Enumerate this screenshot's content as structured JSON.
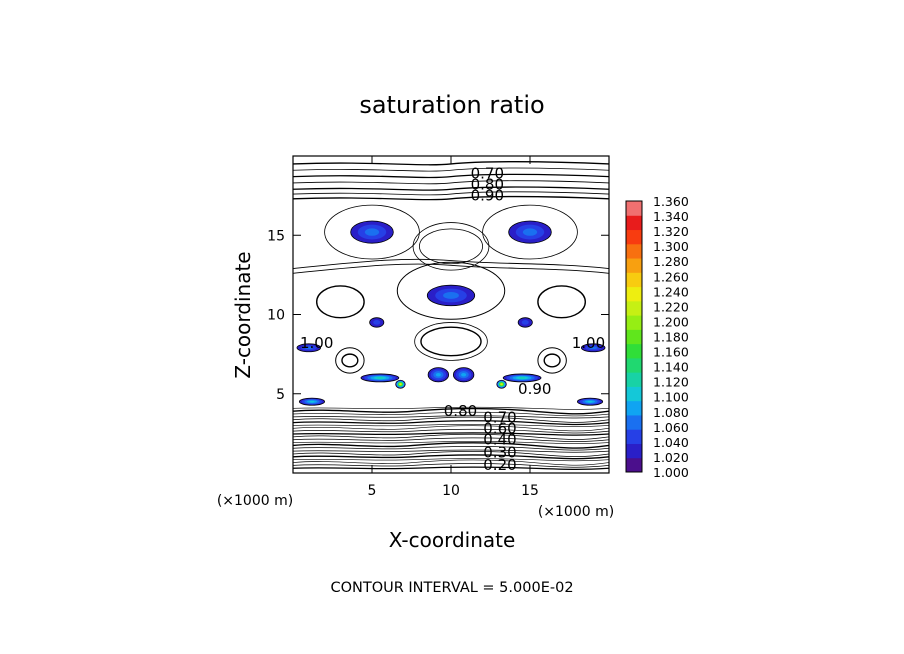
{
  "chart_data": {
    "type": "heatmap",
    "title": "saturation ratio",
    "xlabel": "X-coordinate",
    "ylabel": "Z-coordinate",
    "x_units": "(×1000 m)",
    "z_units": "(×1000 m)",
    "xlim": [
      0,
      20
    ],
    "ylim": [
      0,
      20
    ],
    "x_ticks": [
      5,
      10,
      15
    ],
    "y_ticks": [
      5,
      10,
      15
    ],
    "contour_interval_text": "CONTOUR INTERVAL = 5.000E-02",
    "contour_labels": [
      {
        "text": "0.70",
        "x": 12.3,
        "z": 18.9
      },
      {
        "text": "0.80",
        "x": 12.3,
        "z": 18.2
      },
      {
        "text": "0.90",
        "x": 12.3,
        "z": 17.5
      },
      {
        "text": "1.00",
        "x": 1.5,
        "z": 8.2
      },
      {
        "text": "1.00",
        "x": 18.7,
        "z": 8.2
      },
      {
        "text": "0.90",
        "x": 15.3,
        "z": 5.3
      },
      {
        "text": "0.80",
        "x": 10.6,
        "z": 3.9
      },
      {
        "text": "0.70",
        "x": 13.1,
        "z": 3.5
      },
      {
        "text": "0.60",
        "x": 13.1,
        "z": 2.8
      },
      {
        "text": "0.40",
        "x": 13.1,
        "z": 2.1
      },
      {
        "text": "0.30",
        "x": 13.1,
        "z": 1.3
      },
      {
        "text": "0.20",
        "x": 13.1,
        "z": 0.5
      }
    ],
    "colorbar": {
      "min": 1.0,
      "max": 1.36,
      "step": 0.02,
      "labels": [
        "1.360",
        "1.340",
        "1.320",
        "1.300",
        "1.280",
        "1.260",
        "1.240",
        "1.220",
        "1.200",
        "1.180",
        "1.160",
        "1.140",
        "1.120",
        "1.100",
        "1.080",
        "1.060",
        "1.040",
        "1.020",
        "1.000"
      ],
      "colors": [
        "#4b0f8c",
        "#2a1fc8",
        "#2640e6",
        "#1a70f0",
        "#10a4f2",
        "#14c8d8",
        "#18d2a6",
        "#20d870",
        "#30de38",
        "#60e61c",
        "#96ee14",
        "#c6f014",
        "#eeee10",
        "#f8cc10",
        "#f8a010",
        "#f87010",
        "#f83c10",
        "#e81c1c",
        "#f07070"
      ]
    },
    "regions": [
      {
        "x": 5.0,
        "z": 15.2,
        "w": 2.7,
        "h": 1.4,
        "peak": 1.06
      },
      {
        "x": 15.0,
        "z": 15.2,
        "w": 2.7,
        "h": 1.4,
        "peak": 1.06
      },
      {
        "x": 10.0,
        "z": 11.2,
        "w": 3.0,
        "h": 1.3,
        "peak": 1.05
      },
      {
        "x": 5.3,
        "z": 9.5,
        "w": 0.9,
        "h": 0.6,
        "peak": 1.04
      },
      {
        "x": 14.7,
        "z": 9.5,
        "w": 0.9,
        "h": 0.6,
        "peak": 1.04
      },
      {
        "x": 1.0,
        "z": 7.9,
        "w": 1.5,
        "h": 0.5,
        "peak": 1.06
      },
      {
        "x": 19.0,
        "z": 7.9,
        "w": 1.5,
        "h": 0.5,
        "peak": 1.06
      },
      {
        "x": 5.5,
        "z": 6.0,
        "w": 2.4,
        "h": 0.5,
        "peak": 1.12
      },
      {
        "x": 14.5,
        "z": 6.0,
        "w": 2.4,
        "h": 0.5,
        "peak": 1.12
      },
      {
        "x": 6.8,
        "z": 5.6,
        "w": 0.6,
        "h": 0.5,
        "peak": 1.25
      },
      {
        "x": 13.2,
        "z": 5.6,
        "w": 0.6,
        "h": 0.5,
        "peak": 1.25
      },
      {
        "x": 9.2,
        "z": 6.2,
        "w": 1.3,
        "h": 0.9,
        "peak": 1.08
      },
      {
        "x": 10.8,
        "z": 6.2,
        "w": 1.3,
        "h": 0.9,
        "peak": 1.08
      },
      {
        "x": 1.2,
        "z": 4.5,
        "w": 1.6,
        "h": 0.45,
        "peak": 1.1
      },
      {
        "x": 18.8,
        "z": 4.5,
        "w": 1.6,
        "h": 0.45,
        "peak": 1.1
      }
    ]
  }
}
